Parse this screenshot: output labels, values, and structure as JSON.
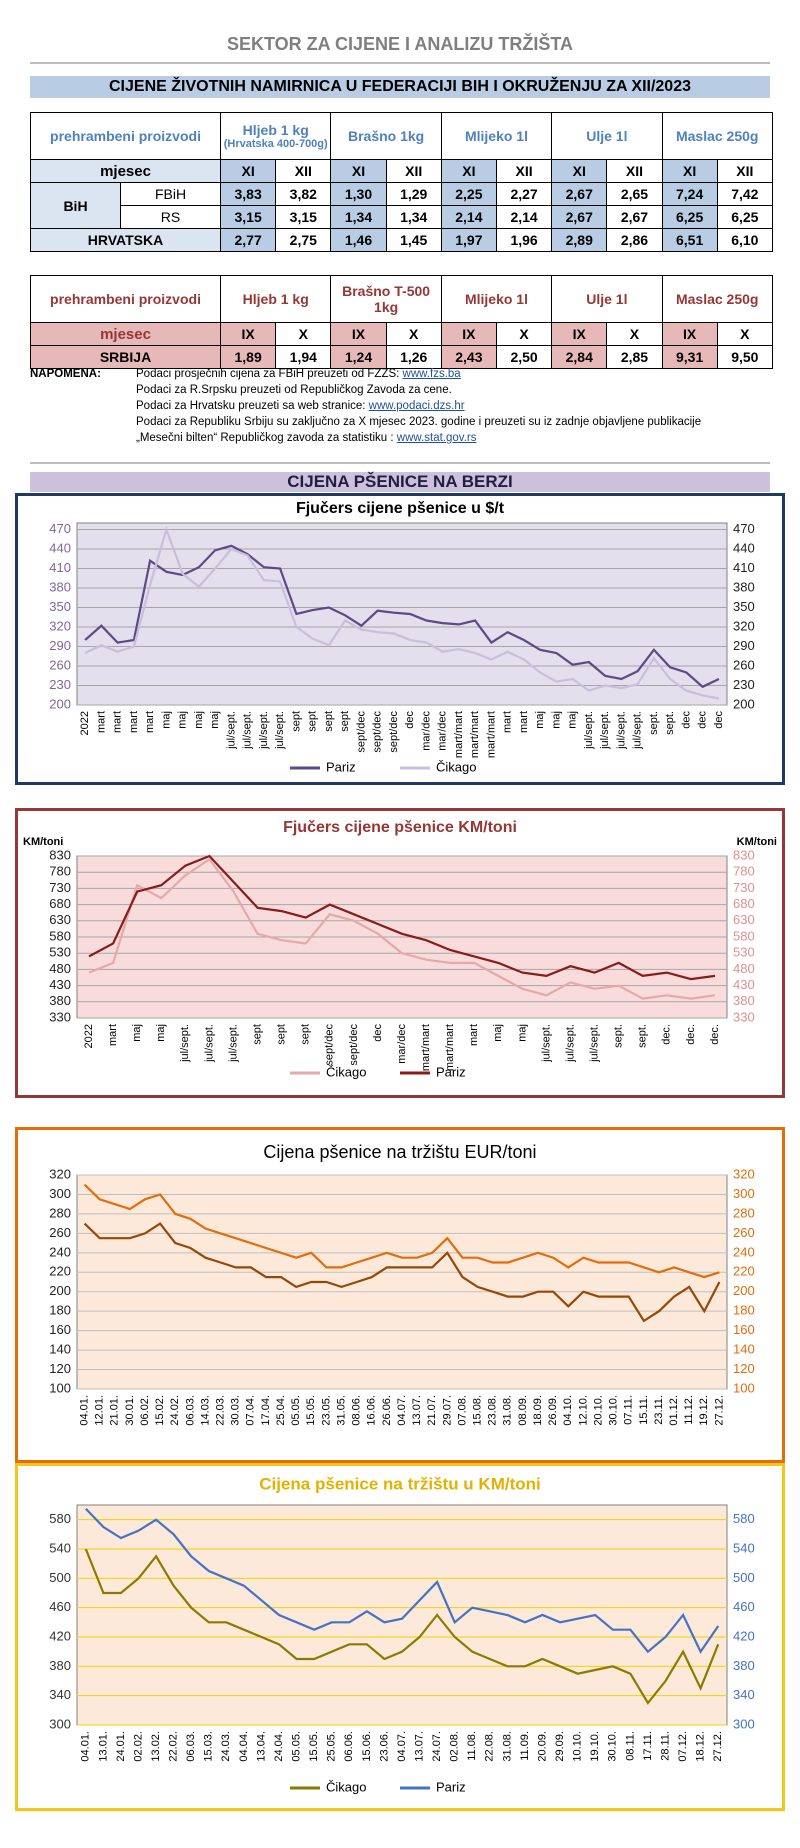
{
  "header": {
    "org": "SEKTOR ZA CIJENE I ANALIZU TRŽIŠTA",
    "title": "CIJENE ŽIVOTNIH NAMIRNICA U FEDERACIJI BIH I OKRUŽENJU ZA XII/2023"
  },
  "table1": {
    "corner": "prehrambeni proizvodi",
    "products": [
      "Hljeb 1 kg",
      "Brašno 1kg",
      "Mlijeko 1l",
      "Ulje 1l",
      "Maslac 250g"
    ],
    "product_note": "(Hrvatska 400-700g)",
    "month_label": "mjesec",
    "months": [
      "XI",
      "XII",
      "XI",
      "XII",
      "XI",
      "XII",
      "XI",
      "XII",
      "XI",
      "XII"
    ],
    "group": "BiH",
    "rows": [
      {
        "label": "FBiH",
        "values": [
          "3,83",
          "3,82",
          "1,30",
          "1,29",
          "2,25",
          "2,27",
          "2,67",
          "2,65",
          "7,24",
          "7,42"
        ]
      },
      {
        "label": "RS",
        "values": [
          "3,15",
          "3,15",
          "1,34",
          "1,34",
          "2,14",
          "2,14",
          "2,67",
          "2,67",
          "6,25",
          "6,25"
        ]
      },
      {
        "label": "HRVATSKA",
        "values": [
          "2,77",
          "2,75",
          "1,46",
          "1,45",
          "1,97",
          "1,96",
          "2,89",
          "2,86",
          "6,51",
          "6,10"
        ]
      }
    ]
  },
  "table2": {
    "corner": "prehrambeni proizvodi",
    "products": [
      "Hljeb 1 kg",
      "Brašno T-500 1kg",
      "Mlijeko  1l",
      "Ulje 1l",
      "Maslac 250g"
    ],
    "month_label": "mjesec",
    "months": [
      "IX",
      "X",
      "IX",
      "X",
      "IX",
      "X",
      "IX",
      "X",
      "IX",
      "X"
    ],
    "rows": [
      {
        "label": "SRBIJA",
        "values": [
          "1,89",
          "1,94",
          "1,24",
          "1,26",
          "2,43",
          "2,50",
          "2,84",
          "2,85",
          "9,31",
          "9,50"
        ]
      }
    ]
  },
  "notes": {
    "label": "NAPOMENA:",
    "lines": [
      {
        "text": "Podaci prosječnih cijena za FBiH preuzeti od  FZZS:",
        "link": "www.fzs.ba"
      },
      {
        "text": "Podaci za R.Srpsku preuzeti od Republičkog Zavoda za cene."
      },
      {
        "text": "Podaci za Hrvatsku preuzeti sa web stranice:",
        "link": "www.podaci.dzs.hr"
      },
      {
        "text": "Podaci za Republiku Srbiju su zaključno za X mjesec  2023. godine i preuzeti su iz zadnje objavljene publikacije"
      },
      {
        "text": "„Mesečni bilten“  Republičkog zavoda za statistiku :",
        "link": "www.stat.gov.rs"
      }
    ]
  },
  "section": "CIJENA PŠENICE NA BERZI",
  "chart_data": [
    {
      "type": "line",
      "title": "Fjučers cijene pšenice u $/t",
      "ylim": [
        200,
        480
      ],
      "yticks": [
        200,
        230,
        260,
        290,
        320,
        350,
        380,
        410,
        440,
        470
      ],
      "grid": true,
      "legend": "bottom",
      "categories": [
        "2022",
        "mart",
        "mart",
        "mart",
        "mart",
        "maj",
        "maj",
        "maj",
        "maj",
        "jul/sept.",
        "jul/sept.",
        "jul/sept.",
        "jul/sept.",
        "sept",
        "sept",
        "sept",
        "sept",
        "sept/dec",
        "sept/dec",
        "sept/dec",
        "dec",
        "mar/dec",
        "mar/dec",
        "mart/mart",
        "mart/mart",
        "mart/mart",
        "mart",
        "mart",
        "maj",
        "maj",
        "maj",
        "jul/sept.",
        "jul/sept.",
        "jul/sept.",
        "jul/sept.",
        "sept.",
        "sept.",
        "dec",
        "dec",
        "dec"
      ],
      "series": [
        {
          "name": "Pariz",
          "color": "#5b4a86",
          "values": [
            300,
            322,
            296,
            300,
            422,
            405,
            400,
            412,
            438,
            445,
            432,
            412,
            410,
            340,
            346,
            350,
            338,
            322,
            345,
            342,
            340,
            330,
            326,
            324,
            330,
            296,
            312,
            300,
            285,
            280,
            262,
            266,
            245,
            240,
            252,
            285,
            258,
            250,
            228,
            240
          ]
        },
        {
          "name": "Čikago",
          "color": "#c8bfdc",
          "values": [
            280,
            292,
            282,
            290,
            385,
            470,
            402,
            382,
            410,
            440,
            430,
            392,
            390,
            320,
            302,
            292,
            330,
            316,
            312,
            310,
            300,
            296,
            282,
            286,
            280,
            270,
            282,
            270,
            250,
            236,
            240,
            222,
            230,
            226,
            232,
            272,
            240,
            222,
            215,
            210
          ]
        }
      ]
    },
    {
      "type": "line",
      "title": "Fjučers cijene pšenice KM/toni",
      "y_label": "KM/toni",
      "y2_label": "KM/toni",
      "ylim": [
        330,
        830
      ],
      "yticks": [
        330,
        380,
        430,
        480,
        530,
        580,
        630,
        680,
        730,
        780,
        830
      ],
      "grid": true,
      "legend": "bottom",
      "categories": [
        "2022",
        "mart",
        "maj",
        "maj",
        "jul/sept.",
        "jul/sept.",
        "jul/sept.",
        "sept",
        "sept",
        "sept",
        "sept/dec",
        "sept/dec",
        "dec",
        "mar/dec",
        "mart/mart",
        "mart/mart",
        "mart",
        "maj",
        "maj",
        "jul/sept.",
        "jul/sept.",
        "jul/sept.",
        "sept.",
        "sept.",
        "dec.",
        "dec.",
        "dec."
      ],
      "series": [
        {
          "name": "Čikago",
          "color": "#e6a8a8",
          "values": [
            470,
            500,
            740,
            700,
            770,
            820,
            720,
            590,
            570,
            560,
            650,
            630,
            590,
            530,
            510,
            500,
            500,
            460,
            420,
            400,
            440,
            420,
            430,
            390,
            400,
            390,
            400
          ]
        },
        {
          "name": "Pariz",
          "color": "#8b1a1a",
          "values": [
            520,
            560,
            720,
            740,
            800,
            830,
            750,
            670,
            660,
            640,
            680,
            650,
            620,
            590,
            570,
            540,
            520,
            500,
            470,
            460,
            490,
            470,
            500,
            460,
            470,
            450,
            460
          ]
        }
      ]
    },
    {
      "type": "line",
      "title": "Cijena pšenice na tržištu EUR/toni",
      "ylim": [
        100,
        320
      ],
      "yticks": [
        100,
        120,
        140,
        160,
        180,
        200,
        220,
        240,
        260,
        280,
        300,
        320
      ],
      "grid": true,
      "categories": [
        "04.01.",
        "12.01.",
        "21.01.",
        "30.01.",
        "06.02.",
        "15.02.",
        "24.02.",
        "06.03.",
        "14.03.",
        "22.03.",
        "30.03.",
        "07.04.",
        "17.04.",
        "25.04.",
        "05.05.",
        "15.05.",
        "23.05.",
        "31.05.",
        "08.06.",
        "16.06.",
        "26.06.",
        "04.07.",
        "13.07.",
        "21.07.",
        "29.07.",
        "07.08.",
        "15.08.",
        "23.08.",
        "31.08.",
        "08.09.",
        "18.09.",
        "26.09.",
        "04.10.",
        "12.10.",
        "20.10.",
        "30.10.",
        "07.11.",
        "15.11.",
        "23.11.",
        "01.12.",
        "11.12.",
        "19.12.",
        "27.12."
      ],
      "series": [
        {
          "color": "#e46c0a",
          "values": [
            310,
            295,
            290,
            285,
            295,
            300,
            280,
            275,
            265,
            260,
            255,
            250,
            245,
            240,
            235,
            240,
            225,
            225,
            230,
            235,
            240,
            235,
            235,
            240,
            255,
            235,
            235,
            230,
            230,
            235,
            240,
            235,
            225,
            235,
            230,
            230,
            230,
            225,
            220,
            225,
            220,
            215,
            220
          ]
        },
        {
          "color": "#974706",
          "values": [
            270,
            255,
            255,
            255,
            260,
            270,
            250,
            245,
            235,
            230,
            225,
            225,
            215,
            215,
            205,
            210,
            210,
            205,
            210,
            215,
            225,
            225,
            225,
            225,
            240,
            215,
            205,
            200,
            195,
            195,
            200,
            200,
            185,
            200,
            195,
            195,
            195,
            170,
            180,
            195,
            205,
            180,
            210
          ]
        }
      ]
    },
    {
      "type": "line",
      "title": "Cijena pšenice na tržištu u KM/toni",
      "ylim": [
        300,
        600
      ],
      "yticks": [
        300,
        340,
        380,
        420,
        460,
        500,
        540,
        580
      ],
      "grid": true,
      "legend": "bottom",
      "categories": [
        "04.01.",
        "13.01.",
        "24.01.",
        "02.02.",
        "13.02.",
        "22.02.",
        "06.03.",
        "15.03.",
        "24.03.",
        "04.04.",
        "13.04.",
        "24.04.",
        "05.05.",
        "15.05.",
        "25.05.",
        "06.06.",
        "15.06.",
        "23.06.",
        "04.07.",
        "13.07.",
        "24.07.",
        "02.08.",
        "11.08.",
        "22.08.",
        "31.08.",
        "11.09.",
        "20.09.",
        "29.09.",
        "10.10.",
        "19.10.",
        "30.10.",
        "08.11.",
        "17.11.",
        "28.11.",
        "07.12.",
        "18.12.",
        "27.12."
      ],
      "series": [
        {
          "name": "Čikago",
          "color": "#8c7a00",
          "values": [
            540,
            480,
            480,
            500,
            530,
            490,
            460,
            440,
            440,
            430,
            420,
            410,
            390,
            390,
            400,
            410,
            410,
            390,
            400,
            420,
            450,
            420,
            400,
            390,
            380,
            380,
            390,
            380,
            370,
            375,
            380,
            370,
            330,
            360,
            400,
            350,
            410
          ]
        },
        {
          "name": "Pariz",
          "color": "#4472c4",
          "values": [
            595,
            570,
            555,
            565,
            580,
            560,
            530,
            510,
            500,
            490,
            470,
            450,
            440,
            430,
            440,
            440,
            455,
            440,
            445,
            470,
            495,
            440,
            460,
            455,
            450,
            440,
            450,
            440,
            445,
            450,
            430,
            430,
            400,
            420,
            450,
            400,
            435
          ]
        }
      ]
    }
  ]
}
